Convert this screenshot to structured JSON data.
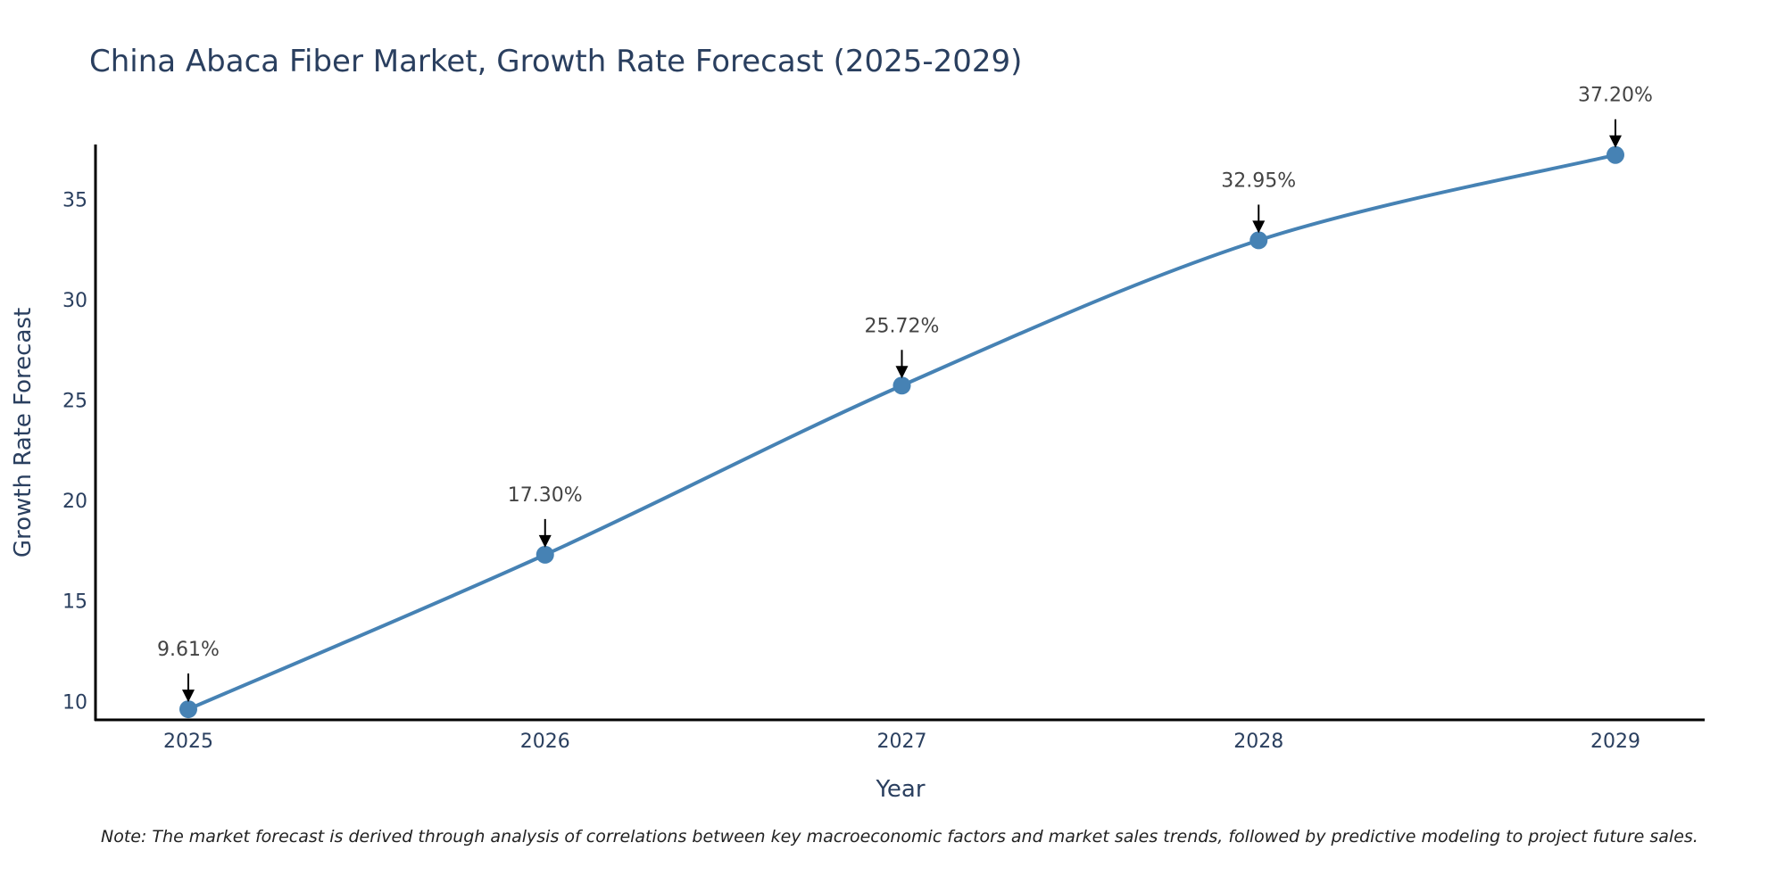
{
  "colors": {
    "line": "#4682b4",
    "marker": "#4682b4",
    "axis": "#000000",
    "annotation_text": "#444444",
    "annotation_arrow": "#000000",
    "title": "#2a3f5f"
  },
  "chart_data": {
    "type": "line",
    "title": "China Abaca Fiber Market, Growth Rate Forecast (2025-2029)",
    "xlabel": "Year",
    "ylabel": "Growth Rate Forecast",
    "categories": [
      "2025",
      "2026",
      "2027",
      "2028",
      "2029"
    ],
    "series": [
      {
        "name": "Growth Rate Forecast",
        "values": [
          9.61,
          17.3,
          25.72,
          32.95,
          37.2
        ]
      }
    ],
    "data_labels": [
      "9.61%",
      "17.30%",
      "25.72%",
      "32.95%",
      "37.20%"
    ],
    "yticks": [
      10,
      15,
      20,
      25,
      30,
      35
    ],
    "ylim": [
      9.08,
      37.72
    ],
    "line_shape": "spline",
    "grid": false,
    "note": "Note: The market forecast is derived through analysis of correlations between key macroeconomic factors and market sales trends, followed by predictive modeling to project future sales."
  }
}
